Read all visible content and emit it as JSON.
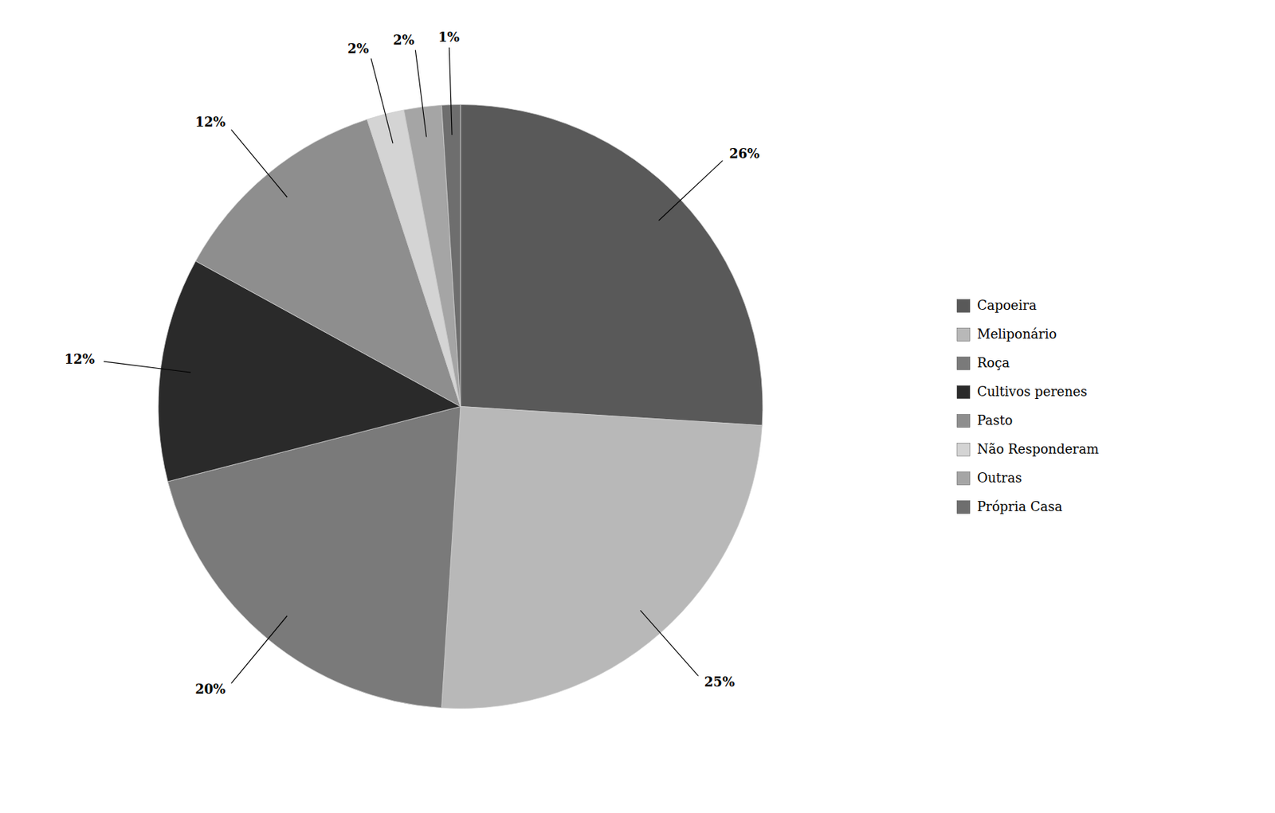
{
  "chart_data": {
    "type": "pie",
    "categories": [
      "Capoeira",
      "Meliponário",
      "Roça",
      "Cultivos perenes",
      "Pasto",
      "Não Responderam",
      "Outras",
      "Própria Casa"
    ],
    "values": [
      26,
      25,
      20,
      12,
      12,
      2,
      2,
      1
    ],
    "value_labels": [
      "26%",
      "25%",
      "20%",
      "12%",
      "12%",
      "2%",
      "2%",
      "1%"
    ],
    "colors": [
      "#595959",
      "#b8b8b8",
      "#7a7a7a",
      "#2a2a2a",
      "#8e8e8e",
      "#d4d4d4",
      "#a5a5a5",
      "#6e6e6e"
    ],
    "data_labels": true,
    "legend": "right"
  }
}
